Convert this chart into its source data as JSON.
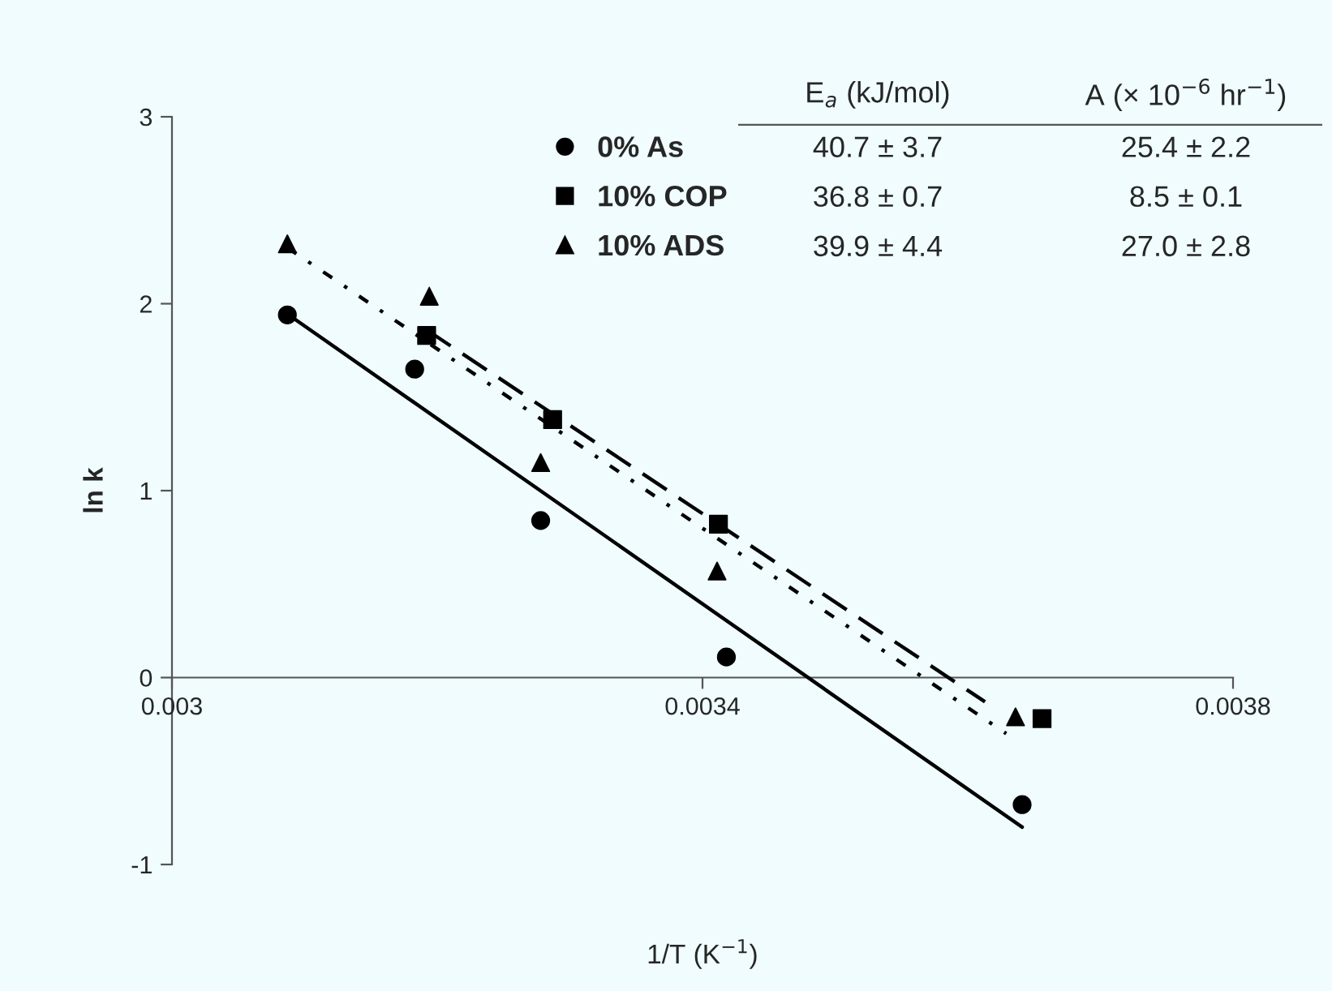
{
  "chart_data": {
    "type": "scatter",
    "xlabel": "1/T (K$^{−1}$)",
    "ylabel": "ln k",
    "xlim": [
      0.003,
      0.0038
    ],
    "xticks": [
      0.003,
      0.0034,
      0.0038
    ],
    "ylim": [
      -1,
      3
    ],
    "yticks": [
      -1,
      0,
      1,
      2,
      3
    ],
    "grid": false,
    "legend": "top",
    "series": [
      {
        "name": "0% As",
        "marker": "circle",
        "color": "#000000",
        "x": [
          0.003087,
          0.003183,
          0.003278,
          0.003418,
          0.003641
        ],
        "values": [
          1.94,
          1.65,
          0.84,
          0.11,
          -0.68
        ]
      },
      {
        "name": "10% COP",
        "marker": "square",
        "color": "#000000",
        "x": [
          0.003192,
          0.003287,
          0.003412,
          0.003656
        ],
        "values": [
          1.83,
          1.38,
          0.82,
          -0.22
        ]
      },
      {
        "name": "10% ADS",
        "marker": "triangle",
        "color": "#000000",
        "x": [
          0.003087,
          0.003194,
          0.003278,
          0.003411,
          0.003636
        ],
        "values": [
          2.32,
          2.04,
          1.15,
          0.57,
          -0.21
        ]
      },
      {
        "type": "line",
        "line_style": "solid",
        "color": "#000000",
        "x": [
          0.003086,
          0.003641
        ],
        "values": [
          1.95,
          -0.8
        ]
      },
      {
        "type": "line",
        "line_style": "dashed",
        "color": "#000000",
        "x": [
          0.003192,
          0.003613
        ],
        "values": [
          1.86,
          -0.13
        ]
      },
      {
        "type": "line",
        "line_style": "dotted",
        "color": "#000000",
        "x": [
          0.003087,
          0.003629
        ],
        "values": [
          2.3,
          -0.3
        ]
      }
    ],
    "annotations": [
      "E$_{a}$ (kJ/mol)",
      "A (× 10$^{−6}$ hr$^{−1}$)",
      "40.7 ± 3.7",
      "25.4 ± 2.2",
      "36.8 ± 0.7",
      "8.5 ± 0.1",
      "39.9 ± 4.4",
      "27.0 ± 2.8"
    ]
  }
}
